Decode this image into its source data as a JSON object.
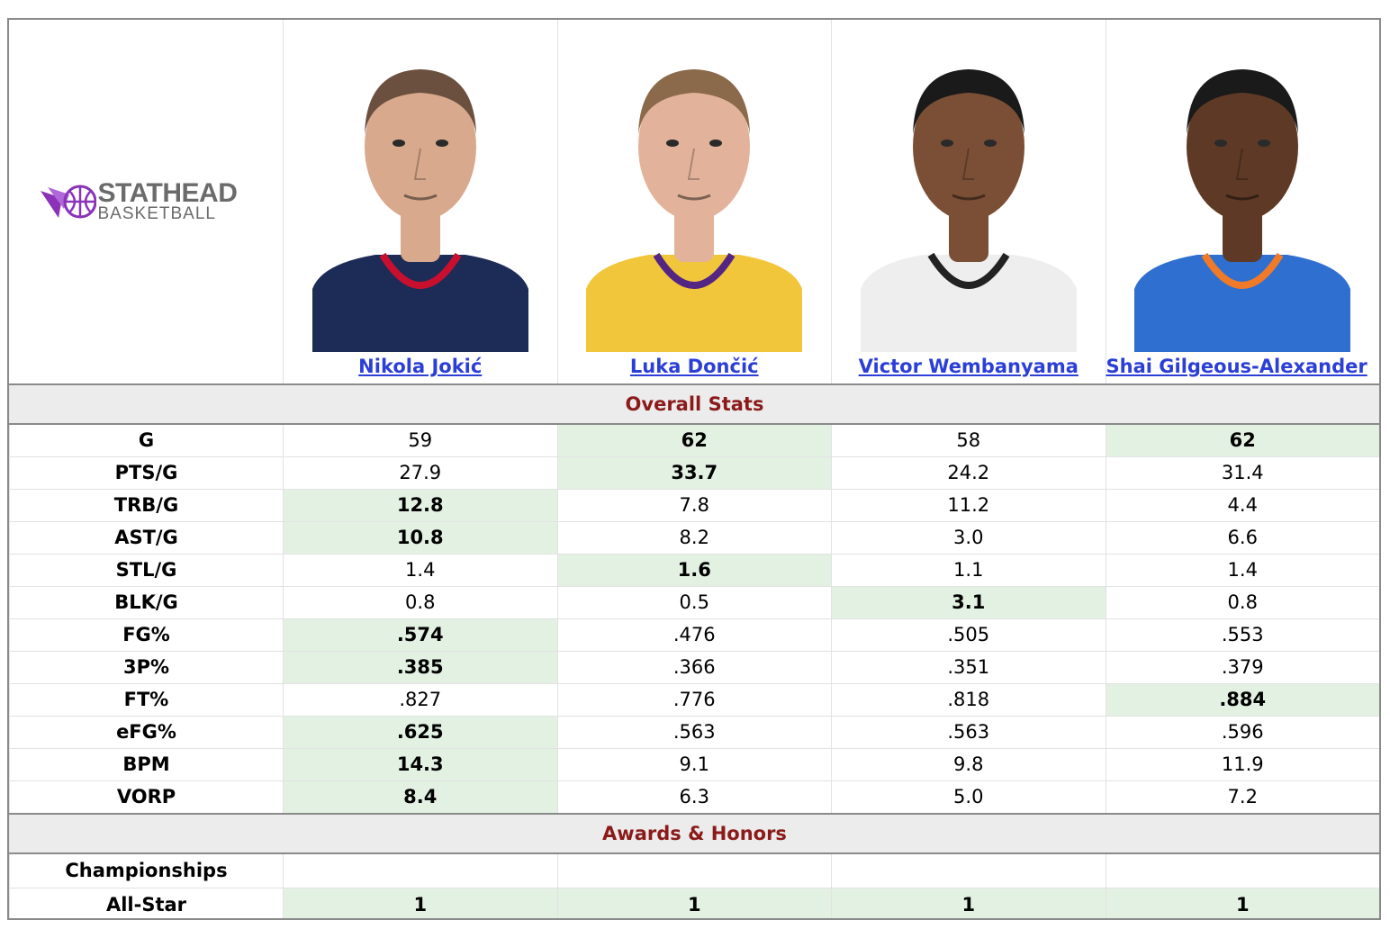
{
  "logo": {
    "line1": "STATHEAD",
    "line2": "BASKETBALL",
    "accent": "#8a33b8"
  },
  "players": [
    {
      "name": "Nikola Jokić",
      "jersey": "#1d2b57",
      "trim": "#c8102e",
      "skin": "#d8a98c",
      "hair": "#6b5040"
    },
    {
      "name": "Luka Dončić",
      "jersey": "#f2c63a",
      "trim": "#552583",
      "skin": "#e2b39a",
      "hair": "#8a6a4a"
    },
    {
      "name": "Victor Wembanyama",
      "jersey": "#eeeeee",
      "trim": "#222222",
      "skin": "#7a4f35",
      "hair": "#1a1a1a"
    },
    {
      "name": "Shai Gilgeous-Alexander",
      "jersey": "#2f6fd0",
      "trim": "#f07a28",
      "skin": "#5e3a26",
      "hair": "#1a1a1a"
    }
  ],
  "sections": {
    "overall": "Overall Stats",
    "awards": "Awards & Honors"
  },
  "stats": [
    {
      "label": "G",
      "values": [
        "59",
        "62",
        "58",
        "62"
      ],
      "best": [
        1,
        3
      ]
    },
    {
      "label": "PTS/G",
      "values": [
        "27.9",
        "33.7",
        "24.2",
        "31.4"
      ],
      "best": [
        1
      ]
    },
    {
      "label": "TRB/G",
      "values": [
        "12.8",
        "7.8",
        "11.2",
        "4.4"
      ],
      "best": [
        0
      ]
    },
    {
      "label": "AST/G",
      "values": [
        "10.8",
        "8.2",
        "3.0",
        "6.6"
      ],
      "best": [
        0
      ]
    },
    {
      "label": "STL/G",
      "values": [
        "1.4",
        "1.6",
        "1.1",
        "1.4"
      ],
      "best": [
        1
      ]
    },
    {
      "label": "BLK/G",
      "values": [
        "0.8",
        "0.5",
        "3.1",
        "0.8"
      ],
      "best": [
        2
      ]
    },
    {
      "label": "FG%",
      "values": [
        ".574",
        ".476",
        ".505",
        ".553"
      ],
      "best": [
        0
      ]
    },
    {
      "label": "3P%",
      "values": [
        ".385",
        ".366",
        ".351",
        ".379"
      ],
      "best": [
        0
      ]
    },
    {
      "label": "FT%",
      "values": [
        ".827",
        ".776",
        ".818",
        ".884"
      ],
      "best": [
        3
      ]
    },
    {
      "label": "eFG%",
      "values": [
        ".625",
        ".563",
        ".563",
        ".596"
      ],
      "best": [
        0
      ]
    },
    {
      "label": "BPM",
      "values": [
        "14.3",
        "9.1",
        "9.8",
        "11.9"
      ],
      "best": [
        0
      ]
    },
    {
      "label": "VORP",
      "values": [
        "8.4",
        "6.3",
        "5.0",
        "7.2"
      ],
      "best": [
        0
      ]
    }
  ],
  "awards": [
    {
      "label": "Championships",
      "values": [
        "",
        "",
        "",
        ""
      ],
      "best": []
    },
    {
      "label": "All-Star",
      "values": [
        "1",
        "1",
        "1",
        "1"
      ],
      "best": [
        0,
        1,
        2,
        3
      ]
    }
  ]
}
